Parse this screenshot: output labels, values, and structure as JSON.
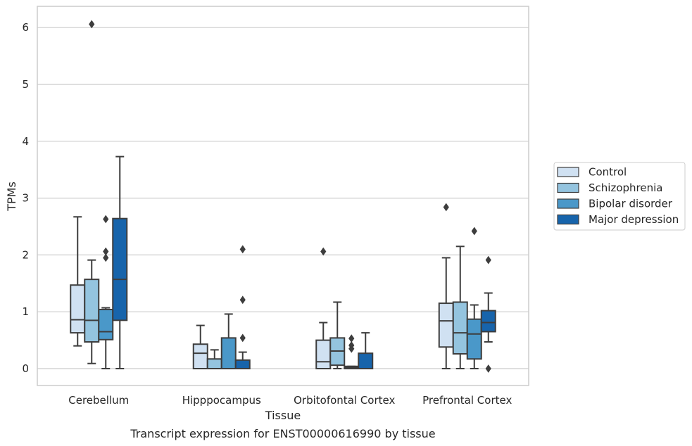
{
  "chart_data": {
    "type": "box",
    "title": "",
    "caption": "Transcript expression for ENST00000616990 by tissue",
    "xlabel": "Tissue",
    "ylabel": "TPMs",
    "ylim": [
      -0.3,
      6.38
    ],
    "yticks": [
      0,
      1,
      2,
      3,
      4,
      5,
      6
    ],
    "grid": "horizontal",
    "legend_position": "right",
    "categories": [
      "Cerebellum",
      "Hipppocampus",
      "Orbitofontal Cortex",
      "Prefrontal Cortex"
    ],
    "series": [
      {
        "name": "Control",
        "color": "#d0e1f2",
        "boxes": [
          {
            "whisker_low": 0.4,
            "q1": 0.63,
            "median": 0.86,
            "q3": 1.47,
            "whisker_high": 2.67,
            "outliers": []
          },
          {
            "whisker_low": 0.0,
            "q1": 0.0,
            "median": 0.27,
            "q3": 0.43,
            "whisker_high": 0.76,
            "outliers": []
          },
          {
            "whisker_low": 0.0,
            "q1": 0.0,
            "median": 0.12,
            "q3": 0.5,
            "whisker_high": 0.81,
            "outliers": [
              2.06
            ]
          },
          {
            "whisker_low": 0.0,
            "q1": 0.38,
            "median": 0.84,
            "q3": 1.15,
            "whisker_high": 1.95,
            "outliers": [
              2.84
            ]
          }
        ]
      },
      {
        "name": "Schizophrenia",
        "color": "#94c4df",
        "boxes": [
          {
            "whisker_low": 0.09,
            "q1": 0.47,
            "median": 0.85,
            "q3": 1.57,
            "whisker_high": 1.91,
            "outliers": [
              6.06
            ]
          },
          {
            "whisker_low": 0.0,
            "q1": 0.0,
            "median": 0.0,
            "q3": 0.17,
            "whisker_high": 0.33,
            "outliers": []
          },
          {
            "whisker_low": 0.0,
            "q1": 0.06,
            "median": 0.31,
            "q3": 0.54,
            "whisker_high": 1.17,
            "outliers": []
          },
          {
            "whisker_low": 0.0,
            "q1": 0.26,
            "median": 0.63,
            "q3": 1.17,
            "whisker_high": 2.15,
            "outliers": []
          }
        ]
      },
      {
        "name": "Bipolar disorder",
        "color": "#4a98c9",
        "boxes": [
          {
            "whisker_low": 0.0,
            "q1": 0.51,
            "median": 0.65,
            "q3": 1.04,
            "whisker_high": 1.07,
            "outliers": [
              1.95,
              2.06,
              2.63
            ]
          },
          {
            "whisker_low": 0.0,
            "q1": 0.0,
            "median": 0.0,
            "q3": 0.54,
            "whisker_high": 0.96,
            "outliers": []
          },
          {
            "whisker_low": 0.0,
            "q1": 0.0,
            "median": 0.02,
            "q3": 0.04,
            "whisker_high": 0.04,
            "outliers": [
              0.35,
              0.41,
              0.53
            ]
          },
          {
            "whisker_low": 0.0,
            "q1": 0.17,
            "median": 0.61,
            "q3": 0.87,
            "whisker_high": 1.12,
            "outliers": [
              2.42
            ]
          }
        ]
      },
      {
        "name": "Major depression",
        "color": "#1764ab",
        "boxes": [
          {
            "whisker_low": 0.0,
            "q1": 0.85,
            "median": 1.57,
            "q3": 2.64,
            "whisker_high": 3.73,
            "outliers": []
          },
          {
            "whisker_low": 0.0,
            "q1": 0.0,
            "median": 0.0,
            "q3": 0.15,
            "whisker_high": 0.29,
            "outliers": [
              0.54,
              1.21,
              2.1
            ]
          },
          {
            "whisker_low": 0.0,
            "q1": 0.0,
            "median": 0.0,
            "q3": 0.27,
            "whisker_high": 0.63,
            "outliers": []
          },
          {
            "whisker_low": 0.47,
            "q1": 0.65,
            "median": 0.81,
            "q3": 1.02,
            "whisker_high": 1.33,
            "outliers": [
              0.0,
              1.91
            ]
          }
        ]
      }
    ]
  }
}
